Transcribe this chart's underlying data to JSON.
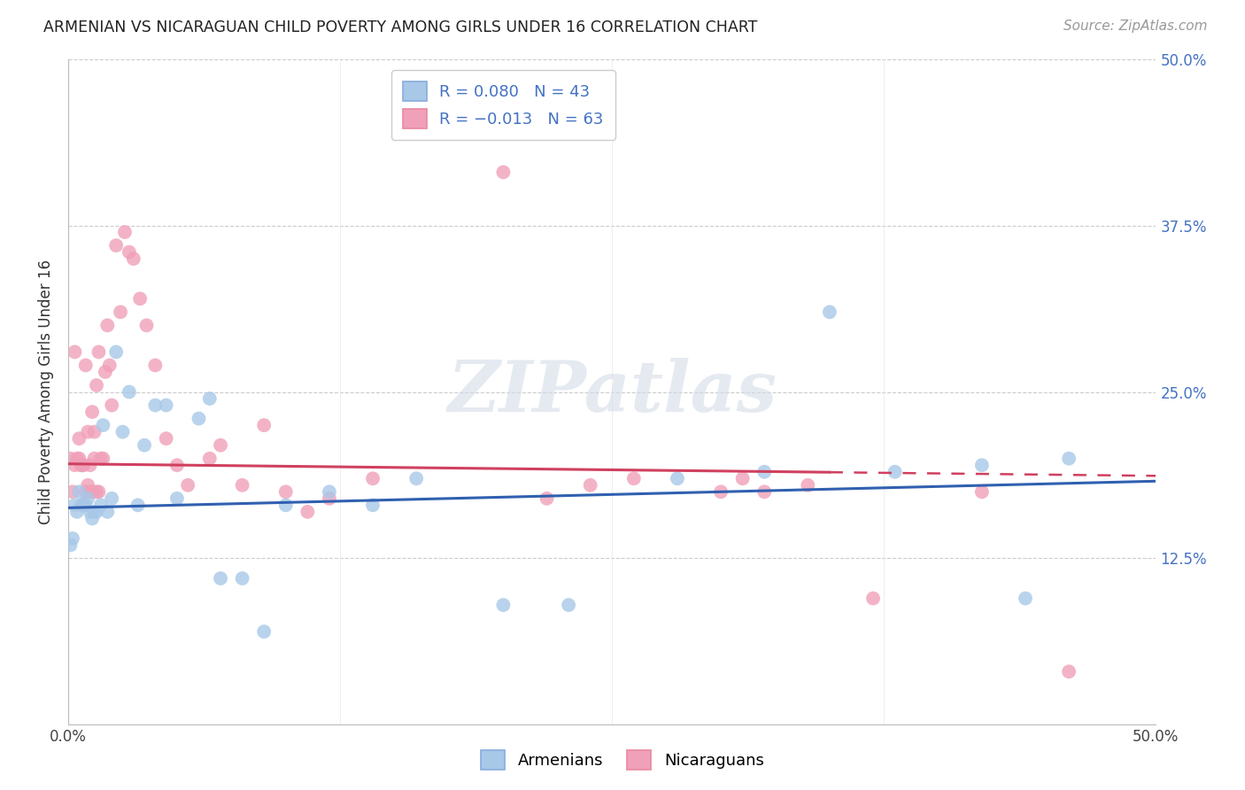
{
  "title": "ARMENIAN VS NICARAGUAN CHILD POVERTY AMONG GIRLS UNDER 16 CORRELATION CHART",
  "source": "Source: ZipAtlas.com",
  "ylabel": "Child Poverty Among Girls Under 16",
  "xlim": [
    0.0,
    0.5
  ],
  "ylim": [
    0.0,
    0.5
  ],
  "watermark_zip": "ZIP",
  "watermark_atlas": "atlas",
  "legend_armenians": "Armenians",
  "legend_nicaraguans": "Nicaraguans",
  "R_armenian": 0.08,
  "N_armenian": 43,
  "R_nicaraguan": -0.013,
  "N_nicaraguan": 63,
  "color_armenian": "#a8c8e8",
  "color_nicaraguan": "#f0a0b8",
  "line_color_armenian": "#3060b0",
  "line_color_nicaraguan": "#d04060",
  "arm_line_x0": 0.0,
  "arm_line_x1": 0.5,
  "arm_line_y0": 0.163,
  "arm_line_y1": 0.183,
  "nic_line_x0": 0.0,
  "nic_line_xsolid": 0.35,
  "nic_line_x1": 0.5,
  "nic_line_y0": 0.196,
  "nic_line_y1": 0.187,
  "armenian_x": [
    0.001,
    0.002,
    0.003,
    0.004,
    0.005,
    0.006,
    0.007,
    0.008,
    0.009,
    0.01,
    0.011,
    0.012,
    0.013,
    0.015,
    0.016,
    0.018,
    0.02,
    0.022,
    0.025,
    0.028,
    0.032,
    0.035,
    0.04,
    0.045,
    0.05,
    0.06,
    0.065,
    0.07,
    0.08,
    0.09,
    0.1,
    0.12,
    0.14,
    0.16,
    0.2,
    0.23,
    0.28,
    0.32,
    0.35,
    0.38,
    0.42,
    0.44,
    0.46
  ],
  "armenian_y": [
    0.135,
    0.14,
    0.165,
    0.16,
    0.175,
    0.165,
    0.165,
    0.165,
    0.17,
    0.16,
    0.155,
    0.16,
    0.16,
    0.165,
    0.225,
    0.16,
    0.17,
    0.28,
    0.22,
    0.25,
    0.165,
    0.21,
    0.24,
    0.24,
    0.17,
    0.23,
    0.245,
    0.11,
    0.11,
    0.07,
    0.165,
    0.175,
    0.165,
    0.185,
    0.09,
    0.09,
    0.185,
    0.19,
    0.31,
    0.19,
    0.195,
    0.095,
    0.2
  ],
  "nicaraguan_x": [
    0.001,
    0.002,
    0.003,
    0.003,
    0.004,
    0.005,
    0.005,
    0.006,
    0.006,
    0.007,
    0.007,
    0.008,
    0.008,
    0.009,
    0.009,
    0.01,
    0.01,
    0.011,
    0.011,
    0.012,
    0.012,
    0.013,
    0.013,
    0.014,
    0.014,
    0.015,
    0.016,
    0.017,
    0.018,
    0.019,
    0.02,
    0.022,
    0.024,
    0.026,
    0.028,
    0.03,
    0.033,
    0.036,
    0.04,
    0.045,
    0.05,
    0.055,
    0.065,
    0.07,
    0.08,
    0.09,
    0.1,
    0.11,
    0.12,
    0.14,
    0.155,
    0.17,
    0.2,
    0.22,
    0.24,
    0.26,
    0.3,
    0.31,
    0.32,
    0.34,
    0.37,
    0.42,
    0.46
  ],
  "nicaraguan_y": [
    0.2,
    0.175,
    0.195,
    0.28,
    0.2,
    0.2,
    0.215,
    0.195,
    0.195,
    0.165,
    0.195,
    0.175,
    0.27,
    0.18,
    0.22,
    0.175,
    0.195,
    0.175,
    0.235,
    0.2,
    0.22,
    0.175,
    0.255,
    0.175,
    0.28,
    0.2,
    0.2,
    0.265,
    0.3,
    0.27,
    0.24,
    0.36,
    0.31,
    0.37,
    0.355,
    0.35,
    0.32,
    0.3,
    0.27,
    0.215,
    0.195,
    0.18,
    0.2,
    0.21,
    0.18,
    0.225,
    0.175,
    0.16,
    0.17,
    0.185,
    0.475,
    0.455,
    0.415,
    0.17,
    0.18,
    0.185,
    0.175,
    0.185,
    0.175,
    0.18,
    0.095,
    0.175,
    0.04
  ]
}
